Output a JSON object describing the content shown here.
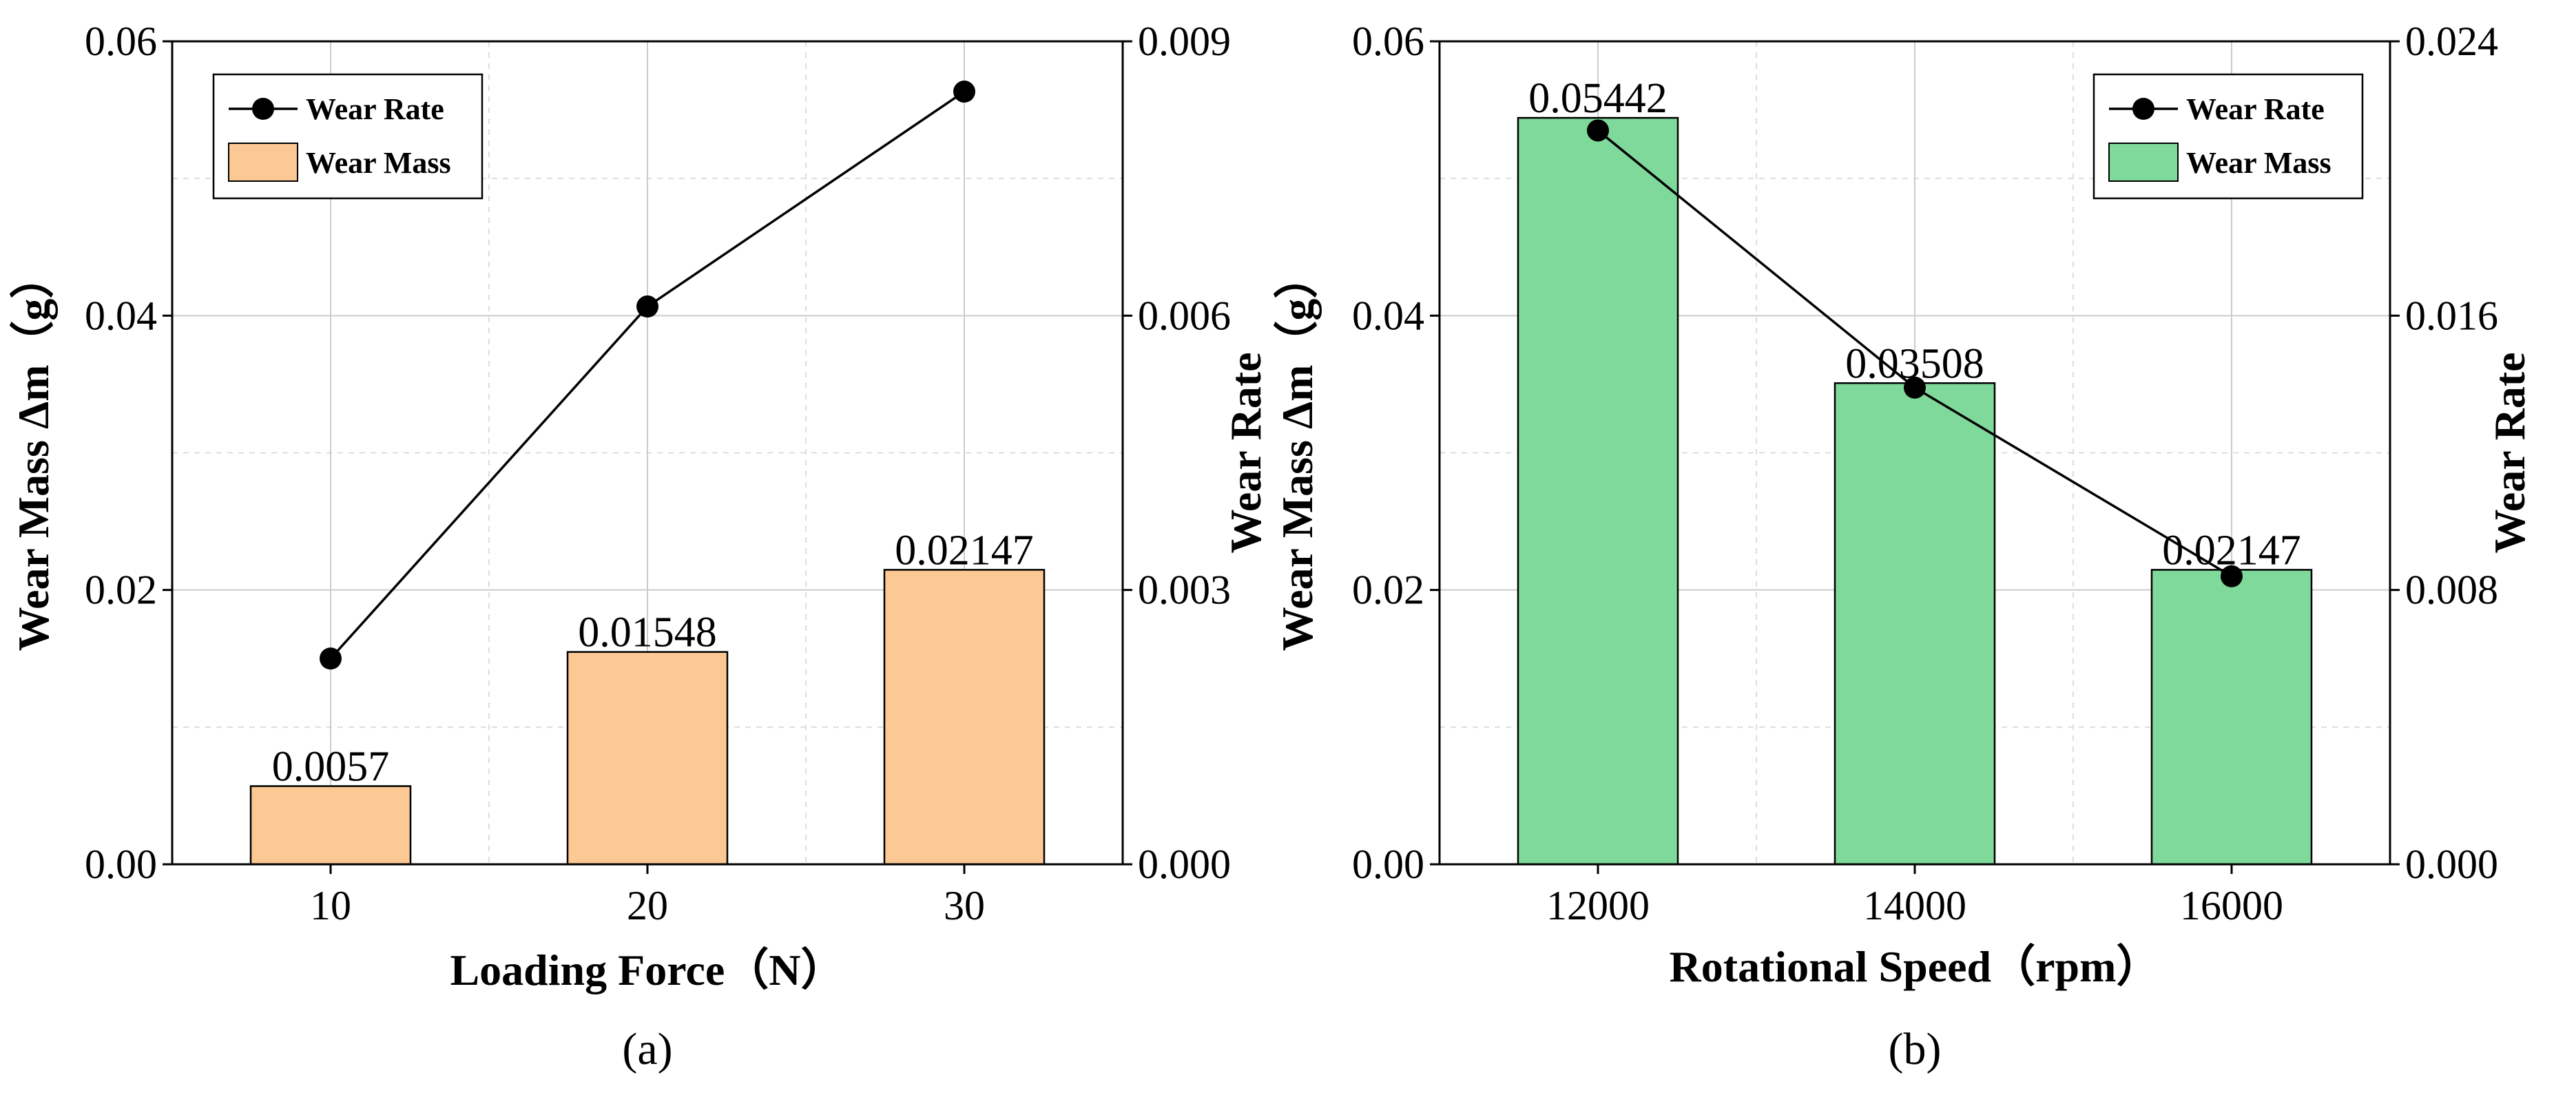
{
  "chart_data": [
    {
      "type": "bar",
      "panel_label": "(a)",
      "xlabel": "Loading Force（N）",
      "ylabel": "Wear Mass Δm（g）",
      "y2label": "Wear Rate",
      "categories": [
        "10",
        "20",
        "30"
      ],
      "ylim": [
        0,
        0.06
      ],
      "y_ticks": [
        "0.00",
        "0.02",
        "0.04",
        "0.06"
      ],
      "y2lim": [
        0,
        0.009
      ],
      "y2_ticks": [
        "0.000",
        "0.003",
        "0.006",
        "0.009"
      ],
      "grid": true,
      "legend_position": "top-left",
      "series": [
        {
          "name": "Wear Mass",
          "kind": "bar",
          "axis": "left",
          "color": "#FCC893",
          "values": [
            0.0057,
            0.01548,
            0.02147
          ],
          "labels": [
            "0.0057",
            "0.01548",
            "0.02147"
          ]
        },
        {
          "name": "Wear Rate",
          "kind": "line",
          "axis": "right",
          "color": "#000000",
          "values": [
            0.00225,
            0.0061,
            0.00845
          ]
        }
      ]
    },
    {
      "type": "bar",
      "panel_label": "(b)",
      "xlabel": "Rotational  Speed（rpm）",
      "ylabel": "Wear Mass Δm（g）",
      "y2label": "Wear Rate",
      "categories": [
        "12000",
        "14000",
        "16000"
      ],
      "ylim": [
        0,
        0.06
      ],
      "y_ticks": [
        "0.00",
        "0.02",
        "0.04",
        "0.06"
      ],
      "y2lim": [
        0,
        0.024
      ],
      "y2_ticks": [
        "0.000",
        "0.008",
        "0.016",
        "0.024"
      ],
      "grid": true,
      "legend_position": "top-right",
      "series": [
        {
          "name": "Wear Mass",
          "kind": "bar",
          "axis": "left",
          "color": "#7FD99B",
          "values": [
            0.05442,
            0.03508,
            0.02147
          ],
          "labels": [
            "0.05442",
            "0.03508",
            "0.02147"
          ]
        },
        {
          "name": "Wear Rate",
          "kind": "line",
          "axis": "right",
          "color": "#000000",
          "values": [
            0.0214,
            0.0139,
            0.0084
          ]
        }
      ]
    }
  ]
}
